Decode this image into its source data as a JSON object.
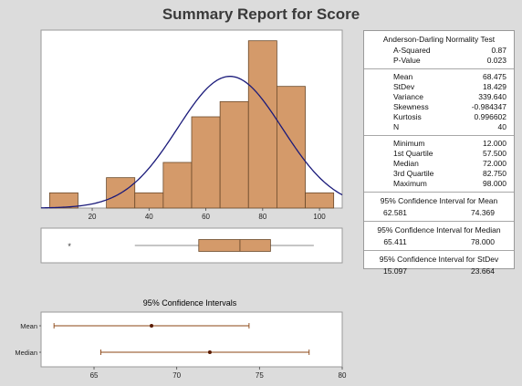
{
  "report_title": "Summary Report for Score",
  "stats": {
    "normality_header": "Anderson-Darling Normality Test",
    "normality": [
      {
        "label": "A-Squared",
        "value": "0.87"
      },
      {
        "label": "P-Value",
        "value": "0.023"
      }
    ],
    "moments": [
      {
        "label": "Mean",
        "value": "68.475"
      },
      {
        "label": "StDev",
        "value": "18.429"
      },
      {
        "label": "Variance",
        "value": "339.640"
      },
      {
        "label": "Skewness",
        "value": "-0.984347"
      },
      {
        "label": "Kurtosis",
        "value": "0.996602"
      },
      {
        "label": "N",
        "value": "40"
      }
    ],
    "quartiles": [
      {
        "label": "Minimum",
        "value": "12.000"
      },
      {
        "label": "1st Quartile",
        "value": "57.500"
      },
      {
        "label": "Median",
        "value": "72.000"
      },
      {
        "label": "3rd Quartile",
        "value": "82.750"
      },
      {
        "label": "Maximum",
        "value": "98.000"
      }
    ],
    "ci_mean_header": "95% Confidence Interval for Mean",
    "ci_mean": [
      "62.581",
      "74.369"
    ],
    "ci_median_header": "95% Confidence Interval for Median",
    "ci_median": [
      "65.411",
      "78.000"
    ],
    "ci_stdev_header": "95% Confidence Interval for StDev",
    "ci_stdev": [
      "15.097",
      "23.664"
    ]
  },
  "chart_data": [
    {
      "type": "histogram",
      "bins": [
        {
          "from": 5,
          "to": 15,
          "count": 1
        },
        {
          "from": 15,
          "to": 25,
          "count": 0
        },
        {
          "from": 25,
          "to": 35,
          "count": 2
        },
        {
          "from": 35,
          "to": 45,
          "count": 1
        },
        {
          "from": 45,
          "to": 55,
          "count": 3
        },
        {
          "from": 55,
          "to": 65,
          "count": 6
        },
        {
          "from": 65,
          "to": 75,
          "count": 7
        },
        {
          "from": 75,
          "to": 85,
          "count": 11
        },
        {
          "from": 85,
          "to": 95,
          "count": 8
        },
        {
          "from": 95,
          "to": 105,
          "count": 1
        }
      ],
      "xlim": [
        2,
        108
      ],
      "ylim": [
        0,
        11.7
      ],
      "xticks": [
        20,
        40,
        60,
        80,
        100
      ],
      "normal_curve": {
        "mean": 68.475,
        "stdev": 18.429,
        "n": 40,
        "bin_width": 10
      },
      "colors": {
        "bar_fill": "#d49a6a",
        "bar_stroke": "#6b4a2b",
        "curve": "#1a1a7a"
      }
    },
    {
      "type": "boxplot",
      "min_whisker": 35,
      "q1": 57.5,
      "median": 72,
      "q3": 82.75,
      "max": 98,
      "outliers": [
        12
      ],
      "outlier_marker": "*",
      "xlim": [
        2,
        108
      ]
    },
    {
      "type": "interval",
      "title": "95% Confidence Intervals",
      "intervals": [
        {
          "label": "Mean",
          "lower": 62.581,
          "estimate": 68.475,
          "upper": 74.369
        },
        {
          "label": "Median",
          "lower": 65.411,
          "estimate": 72.0,
          "upper": 78.0
        }
      ],
      "xlim": [
        61.8,
        80
      ],
      "xticks": [
        65,
        70,
        75,
        80
      ],
      "colors": {
        "line": "#8b4513",
        "point": "#5a1a00"
      }
    }
  ]
}
